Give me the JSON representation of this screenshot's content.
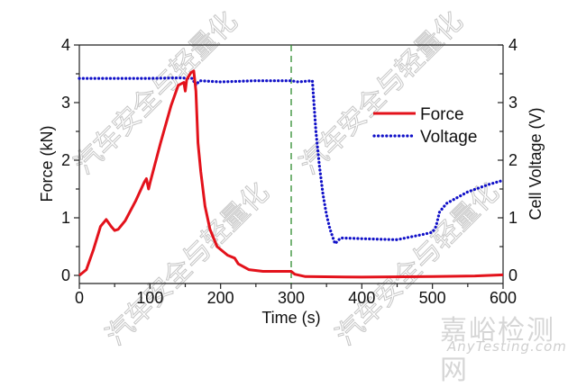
{
  "chart_data": {
    "type": "line",
    "title": "",
    "xlabel": "Time (s)",
    "ylabel": "Force (kN)",
    "y2label": "Cell Voltage (V)",
    "xlim": [
      0,
      600
    ],
    "ylim": [
      -0.14,
      4
    ],
    "y2lim": [
      -0.14,
      4
    ],
    "x_ticks": [
      0,
      100,
      200,
      300,
      400,
      500,
      600
    ],
    "y_ticks": [
      0,
      1,
      2,
      3,
      4
    ],
    "y2_ticks": [
      0,
      1,
      2,
      3,
      4
    ],
    "grid": false,
    "legend_position": "upper right (inside)",
    "annotations": [
      {
        "type": "vertical-dashed-line",
        "x": 300,
        "color": "#2e8b2e"
      }
    ],
    "series": [
      {
        "name": "Force",
        "axis": "left",
        "style": "solid",
        "color": "#e3121b",
        "x": [
          0,
          10,
          20,
          30,
          38,
          45,
          50,
          55,
          65,
          80,
          92,
          95,
          98,
          100,
          115,
          130,
          140,
          148,
          150,
          152,
          158,
          162,
          165,
          168,
          172,
          178,
          185,
          195,
          210,
          220,
          225,
          240,
          260,
          300,
          305,
          320,
          400,
          500,
          560,
          600
        ],
        "values": [
          0,
          0.1,
          0.45,
          0.85,
          0.97,
          0.85,
          0.78,
          0.8,
          0.95,
          1.3,
          1.62,
          1.68,
          1.5,
          1.6,
          2.3,
          2.95,
          3.3,
          3.35,
          3.2,
          3.4,
          3.52,
          3.55,
          3.2,
          2.3,
          1.8,
          1.2,
          0.8,
          0.5,
          0.35,
          0.3,
          0.2,
          0.1,
          0.07,
          0.07,
          0.02,
          -0.02,
          -0.03,
          -0.02,
          -0.01,
          0.01
        ]
      },
      {
        "name": "Voltage",
        "axis": "right",
        "style": "dotted",
        "color": "#1010c8",
        "x": [
          0,
          50,
          100,
          140,
          160,
          165,
          170,
          200,
          250,
          300,
          310,
          320,
          330,
          335,
          340,
          345,
          350,
          355,
          362,
          370,
          420,
          450,
          470,
          490,
          500,
          505,
          510,
          520,
          550,
          580,
          600
        ],
        "values": [
          3.42,
          3.42,
          3.42,
          3.43,
          3.42,
          3.3,
          3.38,
          3.36,
          3.38,
          3.38,
          3.36,
          3.37,
          3.38,
          2.5,
          1.9,
          1.4,
          1.05,
          0.8,
          0.55,
          0.65,
          0.63,
          0.62,
          0.67,
          0.72,
          0.75,
          0.85,
          1.1,
          1.25,
          1.45,
          1.58,
          1.65
        ]
      }
    ]
  },
  "axes": {
    "x_title": "Time (s)",
    "y_left_title": "Force (kN)",
    "y_right_title": "Cell Voltage (V)",
    "x_tick_labels": [
      "0",
      "100",
      "200",
      "300",
      "400",
      "500",
      "600"
    ],
    "y_left_tick_labels": [
      "0",
      "1",
      "2",
      "3",
      "4"
    ],
    "y_right_tick_labels": [
      "0",
      "1",
      "2",
      "3",
      "4"
    ]
  },
  "legend": {
    "items": [
      {
        "label": "Force",
        "color": "#e3121b",
        "style": "solid"
      },
      {
        "label": "Voltage",
        "color": "#1010c8",
        "style": "dotted"
      }
    ]
  },
  "watermarks": {
    "text": "汽车安全与轻量化",
    "brand_cn": "嘉峪检测网",
    "brand_en": "AnyTesting.com"
  }
}
